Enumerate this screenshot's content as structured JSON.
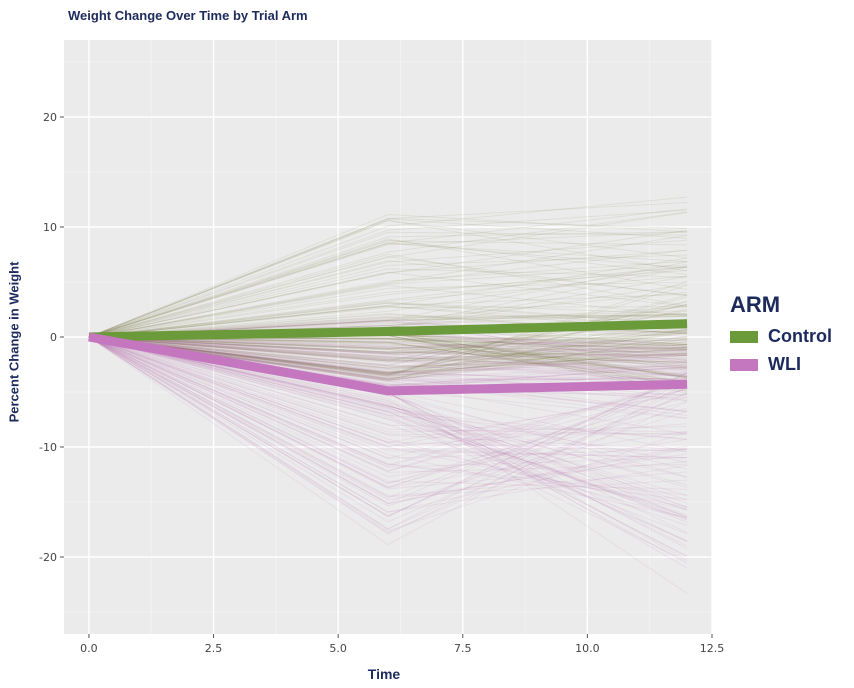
{
  "chart_data": {
    "type": "line",
    "title": "Weight Change Over Time by Trial Arm",
    "xlabel": "Time",
    "ylabel": "Percent Change in Weight",
    "xlim": [
      -0.5,
      12.5
    ],
    "ylim": [
      -27,
      27
    ],
    "x_ticks": [
      "0.0",
      "2.5",
      "5.0",
      "7.5",
      "10.0",
      "12.5"
    ],
    "y_ticks": [
      "-20",
      "-10",
      "0",
      "10",
      "20"
    ],
    "legend_title": "ARM",
    "legend_position": "right",
    "background": "#ebebeb",
    "grid": true,
    "series": [
      {
        "name": "Control",
        "color": "#6a9a3a",
        "x": [
          0,
          6,
          12
        ],
        "y": [
          0,
          0.5,
          1.2
        ],
        "individual_range": {
          "at_6": [
            -4,
            12
          ],
          "at_12": [
            -6,
            14
          ]
        }
      },
      {
        "name": "WLI",
        "color": "#c476bf",
        "x": [
          0,
          6,
          12
        ],
        "y": [
          0,
          -4.9,
          -4.3
        ],
        "individual_range": {
          "at_6": [
            -19,
            2
          ],
          "at_12": [
            -24,
            1
          ]
        }
      }
    ]
  }
}
